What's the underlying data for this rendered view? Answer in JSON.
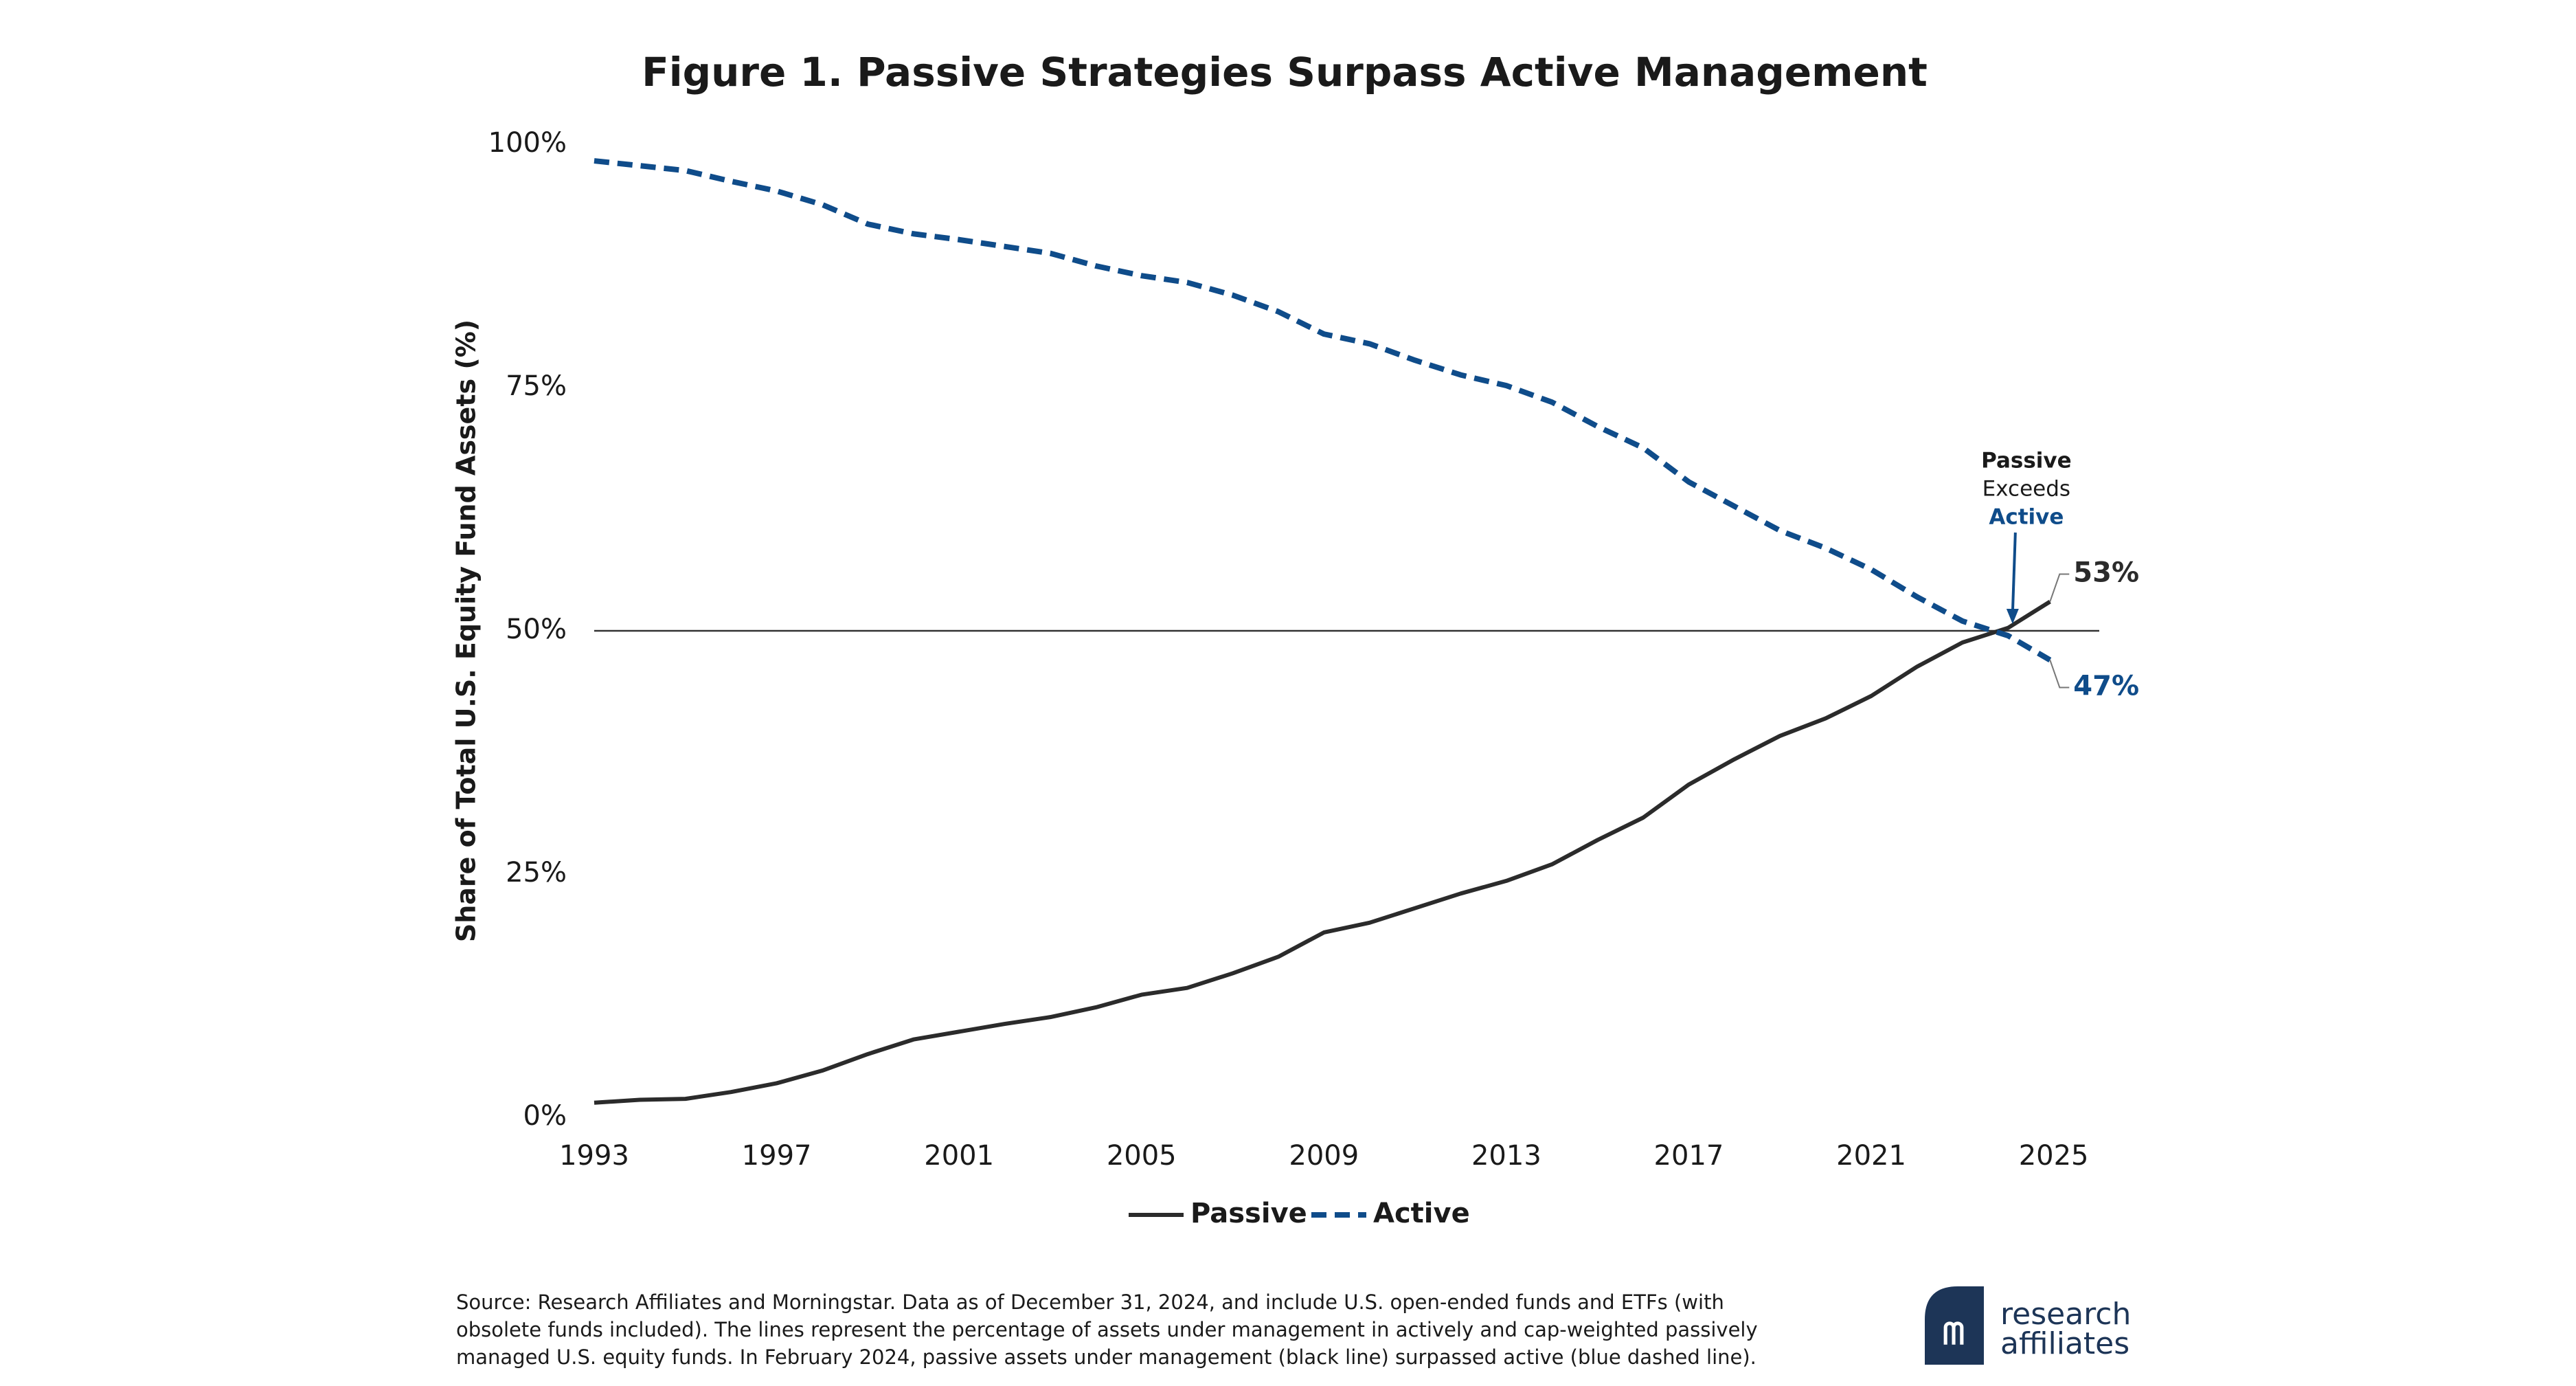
{
  "chart_data": {
    "type": "line",
    "title": "Figure 1. Passive Strategies Surpass Active Management",
    "y_label": "Share of Total U.S. Equity Fund Assets (%)",
    "x": [
      1993,
      1994,
      1995,
      1996,
      1997,
      1998,
      1999,
      2000,
      2001,
      2002,
      2003,
      2004,
      2005,
      2006,
      2007,
      2008,
      2009,
      2010,
      2011,
      2012,
      2013,
      2014,
      2015,
      2016,
      2017,
      2018,
      2019,
      2020,
      2021,
      2022,
      2023,
      2024,
      2024.92
    ],
    "series": [
      {
        "name": "Passive",
        "color": "#2b2b2b",
        "dashed": false,
        "values": [
          1.5,
          1.8,
          1.9,
          2.6,
          3.5,
          4.8,
          6.5,
          8.0,
          8.8,
          9.6,
          10.3,
          11.3,
          12.6,
          13.3,
          14.8,
          16.5,
          19.0,
          20.0,
          21.5,
          23.0,
          24.3,
          26.0,
          28.5,
          30.8,
          34.2,
          36.8,
          39.2,
          41.0,
          43.3,
          46.3,
          48.8,
          50.3,
          53
        ],
        "end_label": {
          "value": 53,
          "label": "53%"
        }
      },
      {
        "name": "Active",
        "color": "#0f4c8a",
        "dashed": true,
        "values": [
          98.3,
          97.8,
          97.3,
          96.2,
          95.2,
          93.8,
          91.8,
          90.8,
          90.2,
          89.5,
          88.8,
          87.5,
          86.5,
          85.8,
          84.5,
          82.8,
          80.5,
          79.5,
          77.8,
          76.3,
          75.2,
          73.5,
          71.0,
          68.8,
          65.3,
          62.8,
          60.3,
          58.5,
          56.3,
          53.5,
          51.0,
          49.5,
          47
        ],
        "end_label": {
          "value": 47,
          "label": "47%"
        }
      }
    ],
    "xlim": [
      1993,
      2026
    ],
    "xticks": [
      1993,
      1997,
      2001,
      2005,
      2009,
      2013,
      2017,
      2021,
      2025
    ],
    "ylim": [
      0,
      100
    ],
    "yticks": [
      {
        "value": 0,
        "label": "0%"
      },
      {
        "value": 25,
        "label": "25%"
      },
      {
        "value": 50,
        "label": "50%"
      },
      {
        "value": 75,
        "label": "75%"
      },
      {
        "value": 100,
        "label": "100%"
      }
    ],
    "reference_line": 50,
    "annotation": {
      "x": 2024.1,
      "lines": [
        "Passive",
        "Exceeds",
        "Active"
      ]
    },
    "legend": "bottom",
    "source": [
      "Source: Research Affiliates and Morningstar. Data as of December 31, 2024, and include U.S. open-ended funds and ETFs (with",
      "obsolete funds included). The lines represent the percentage of assets under management in actively and cap-weighted passively",
      "managed U.S. equity funds. In February 2024, passive assets under management (black line) surpassed active (blue dashed line)."
    ],
    "logo": [
      "research",
      "affiliates"
    ]
  }
}
